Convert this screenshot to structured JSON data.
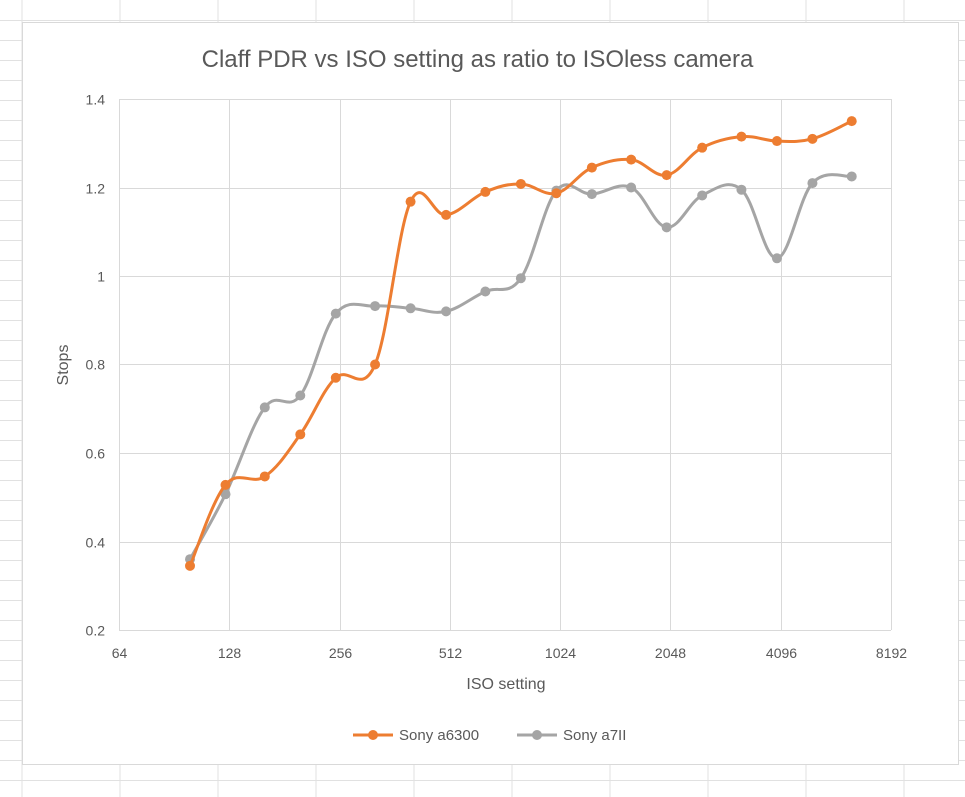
{
  "chart_data": {
    "type": "line",
    "title": "Claff PDR vs ISO setting as ratio to ISOless camera",
    "xlabel": "ISO setting",
    "ylabel": "Stops",
    "x_scale": "log2",
    "xlim": [
      64,
      8192
    ],
    "ylim": [
      0.2,
      1.4
    ],
    "x_ticks": [
      64,
      128,
      256,
      512,
      1024,
      2048,
      4096,
      8192
    ],
    "y_ticks": [
      0.2,
      0.4,
      0.6,
      0.8,
      1,
      1.2,
      1.4
    ],
    "x_tick_labels": [
      "64",
      "128",
      "256",
      "512",
      "1024",
      "2048",
      "4096",
      "8192"
    ],
    "y_tick_labels": [
      "0.2",
      "0.4",
      "0.6",
      "0.8",
      "1",
      "1.2",
      "1.4"
    ],
    "grid": true,
    "smooth": true,
    "legend_position": "bottom",
    "x": [
      100,
      125,
      160,
      200,
      250,
      320,
      400,
      500,
      640,
      800,
      1000,
      1250,
      1600,
      2000,
      2500,
      3200,
      4000,
      5000,
      6400
    ],
    "series": [
      {
        "name": "Sony a6300",
        "color": "#ed7d31",
        "values": [
          0.345,
          0.528,
          0.547,
          0.642,
          0.77,
          0.8,
          1.168,
          1.138,
          1.19,
          1.208,
          1.187,
          1.245,
          1.263,
          1.228,
          1.29,
          1.315,
          1.305,
          1.31,
          1.35
        ]
      },
      {
        "name": "Sony a7II",
        "color": "#a5a5a5",
        "values": [
          0.36,
          0.507,
          0.703,
          0.73,
          0.915,
          0.932,
          0.927,
          0.92,
          0.965,
          0.995,
          1.193,
          1.185,
          1.2,
          1.11,
          1.182,
          1.195,
          1.04,
          1.21,
          1.225
        ]
      }
    ]
  }
}
